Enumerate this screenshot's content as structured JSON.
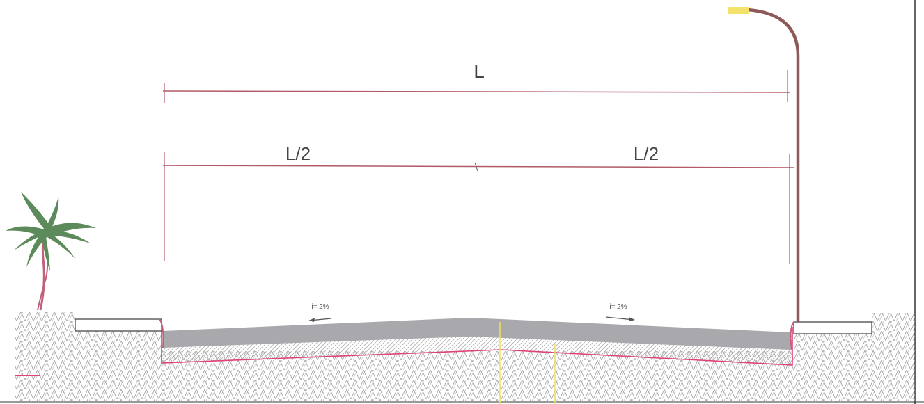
{
  "dimensions": {
    "total_label": "L",
    "left_half_label": "L/2",
    "right_half_label": "L/2"
  },
  "slopes": {
    "left_label": "i= 2%",
    "right_label": "i= 2%"
  },
  "colors": {
    "dimension_line": "#b25a66",
    "pavement": "#a9a8ad",
    "base_outline": "#e0417a",
    "soil_hatch": "#9a9a9a",
    "lamp_pole": "#8c5a5a",
    "lamp_head": "#f5e26a",
    "axis_line": "#f2e35a",
    "curb_fill": "#ffffff",
    "tree_foliage": "#5d8a5a",
    "tree_trunk": "#c0607a"
  }
}
